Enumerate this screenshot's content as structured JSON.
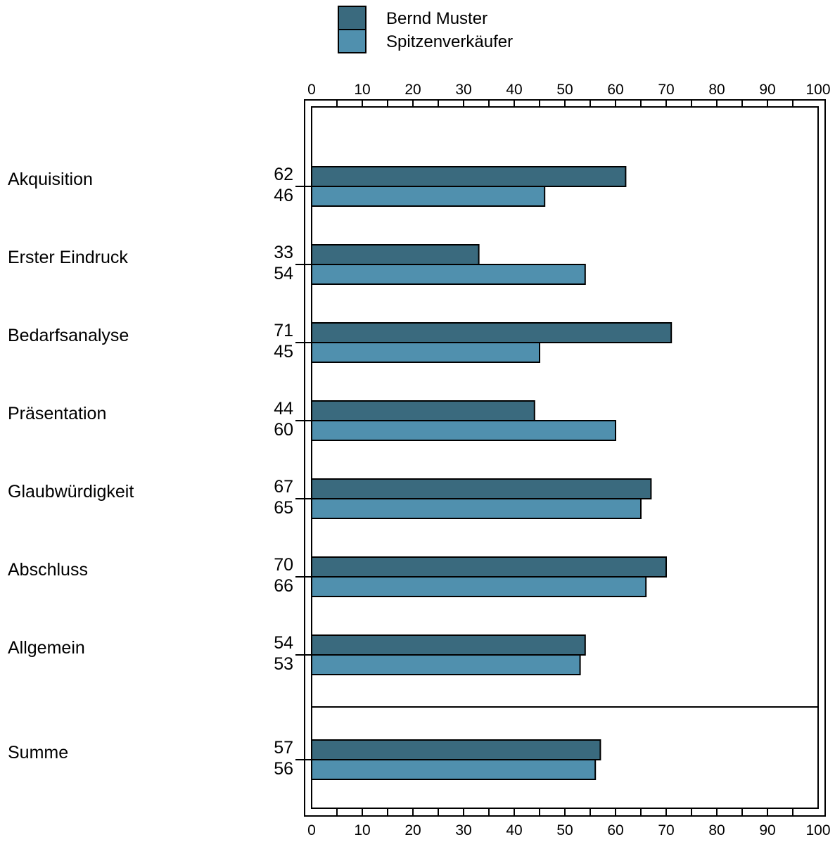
{
  "chart_data": {
    "type": "bar",
    "orientation": "horizontal",
    "categories": [
      "Akquisition",
      "Erster Eindruck",
      "Bedarfsanalyse",
      "Präsentation",
      "Glaubwürdigkeit",
      "Abschluss",
      "Allgemein",
      "Summe"
    ],
    "series": [
      {
        "name": "Bernd Muster",
        "values": [
          62,
          33,
          71,
          44,
          67,
          70,
          54,
          57
        ],
        "color": "#3a6a7e"
      },
      {
        "name": "Spitzenverkäufer",
        "values": [
          46,
          54,
          45,
          60,
          65,
          66,
          53,
          56
        ],
        "color": "#5090ae"
      }
    ],
    "xlim": [
      0,
      100
    ],
    "x_ticks": [
      "0",
      "10",
      "20",
      "30",
      "40",
      "50",
      "60",
      "70",
      "80",
      "90",
      "100"
    ],
    "x_axis_position": "top-and-bottom",
    "legend_position": "top-center",
    "separator_before": "Summe",
    "data_labels": "left-of-axis",
    "grid": false
  }
}
